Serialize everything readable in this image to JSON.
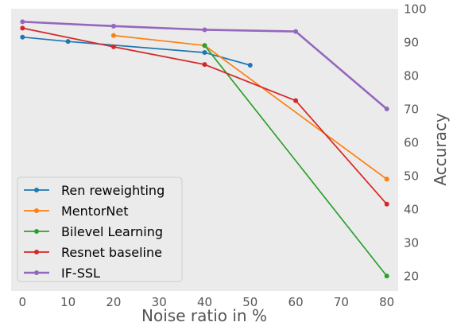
{
  "chart_data": {
    "type": "line",
    "xlabel": "Noise ratio in %",
    "ylabel": "Accuracy",
    "xlim": [
      -2.5,
      82.5
    ],
    "ylim": [
      15.5,
      100
    ],
    "x_ticks": [
      "0",
      "10",
      "20",
      "30",
      "40",
      "50",
      "60",
      "70",
      "80"
    ],
    "x_tick_values": [
      0,
      10,
      20,
      30,
      40,
      50,
      60,
      70,
      80
    ],
    "y_ticks": [
      "20",
      "30",
      "40",
      "50",
      "60",
      "70",
      "80",
      "90",
      "100"
    ],
    "y_tick_values": [
      20,
      30,
      40,
      50,
      60,
      70,
      80,
      90,
      100
    ],
    "y_axis_side": "right",
    "grid": false,
    "background": "#ebebeb",
    "legend_position": "lower-left",
    "series": [
      {
        "name": "Ren reweighting",
        "color": "#1f77b4",
        "x": [
          0,
          10,
          40,
          50
        ],
        "y": [
          91.5,
          90.2,
          86.9,
          83.1
        ]
      },
      {
        "name": "MentorNet",
        "color": "#ff7f0e",
        "x": [
          20,
          40,
          80
        ],
        "y": [
          92.0,
          89.0,
          49.0
        ]
      },
      {
        "name": "Bilevel Learning",
        "color": "#2ca02c",
        "x": [
          40,
          80
        ],
        "y": [
          89.0,
          20.0
        ]
      },
      {
        "name": "Resnet baseline",
        "color": "#d62728",
        "x": [
          0,
          20,
          40,
          60,
          80
        ],
        "y": [
          94.2,
          88.6,
          83.3,
          72.5,
          41.5
        ]
      },
      {
        "name": "IF-SSL",
        "color": "#9467bd",
        "x": [
          0,
          20,
          40,
          60,
          80
        ],
        "y": [
          96.1,
          94.8,
          93.7,
          93.2,
          70.0
        ]
      }
    ]
  }
}
